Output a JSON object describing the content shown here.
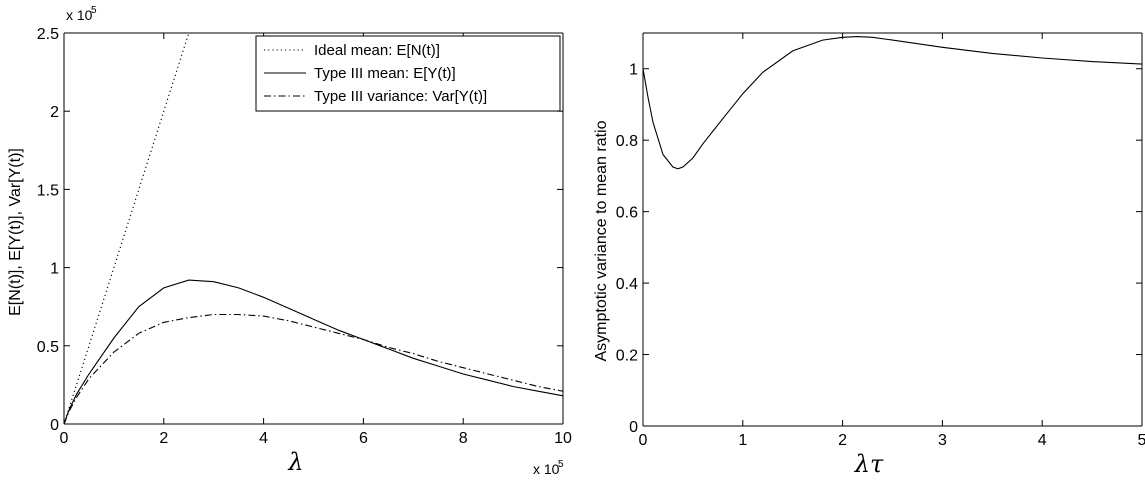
{
  "chart_data": [
    {
      "type": "line",
      "xlabel": "λ",
      "ylabel": "E[N(t)], E[Y(t)], Var[Y(t)]",
      "x_multiplier": "x 10",
      "x_multiplier_exp": "5",
      "y_multiplier": "x 10",
      "y_multiplier_exp": "5",
      "xlim": [
        0,
        10
      ],
      "ylim": [
        0,
        2.5
      ],
      "xticks": [
        "0",
        "2",
        "4",
        "6",
        "8",
        "10"
      ],
      "yticks": [
        "0",
        "0.5",
        "1",
        "1.5",
        "2",
        "2.5"
      ],
      "legend_position": "top-right",
      "grid": false,
      "series": [
        {
          "name": "Ideal mean: E[N(t)]",
          "style": "dotted",
          "x": [
            0,
            0.5,
            1,
            1.5,
            2,
            2.5
          ],
          "y": [
            0,
            0.5,
            1.0,
            1.5,
            2.0,
            2.5
          ]
        },
        {
          "name": "Type III mean: E[Y(t)]",
          "style": "solid",
          "x": [
            0,
            0.1,
            0.25,
            0.5,
            1,
            1.5,
            2,
            2.5,
            3,
            3.5,
            4,
            4.5,
            5,
            5.5,
            6,
            6.5,
            7,
            7.5,
            8,
            8.5,
            9,
            9.5,
            10
          ],
          "y": [
            0,
            0.09,
            0.19,
            0.32,
            0.55,
            0.75,
            0.87,
            0.92,
            0.91,
            0.87,
            0.81,
            0.74,
            0.67,
            0.6,
            0.54,
            0.48,
            0.42,
            0.37,
            0.32,
            0.28,
            0.24,
            0.21,
            0.18
          ]
        },
        {
          "name": "Type III variance: Var[Y(t)]",
          "style": "dashdot",
          "x": [
            0,
            0.1,
            0.25,
            0.5,
            1,
            1.5,
            2,
            2.5,
            3,
            3.5,
            4,
            4.5,
            5,
            5.5,
            6,
            6.5,
            7,
            7.5,
            8,
            8.5,
            9,
            9.5,
            10
          ],
          "y": [
            0,
            0.08,
            0.17,
            0.29,
            0.46,
            0.58,
            0.65,
            0.68,
            0.7,
            0.7,
            0.69,
            0.66,
            0.62,
            0.58,
            0.54,
            0.49,
            0.45,
            0.4,
            0.36,
            0.32,
            0.28,
            0.24,
            0.21
          ]
        }
      ]
    },
    {
      "type": "line",
      "xlabel": "λτ",
      "ylabel": "Asymptotic variance to mean ratio",
      "xlim": [
        0,
        5
      ],
      "ylim": [
        0,
        1.1
      ],
      "xticks": [
        "0",
        "1",
        "2",
        "3",
        "4",
        "5"
      ],
      "yticks": [
        "0",
        "0.2",
        "0.4",
        "0.6",
        "0.8",
        "1"
      ],
      "grid": false,
      "series": [
        {
          "style": "solid",
          "x": [
            0,
            0.05,
            0.1,
            0.2,
            0.3,
            0.35,
            0.4,
            0.5,
            0.6,
            0.8,
            1.0,
            1.2,
            1.5,
            1.8,
            2.0,
            2.15,
            2.3,
            2.5,
            3.0,
            3.5,
            4.0,
            4.5,
            5.0
          ],
          "y": [
            1.0,
            0.92,
            0.85,
            0.76,
            0.725,
            0.72,
            0.725,
            0.75,
            0.79,
            0.86,
            0.93,
            0.99,
            1.05,
            1.08,
            1.088,
            1.09,
            1.088,
            1.08,
            1.06,
            1.043,
            1.03,
            1.02,
            1.013
          ]
        }
      ]
    }
  ]
}
